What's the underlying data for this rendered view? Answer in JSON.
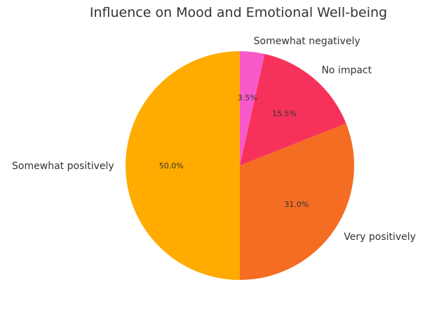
{
  "chart_data": {
    "type": "pie",
    "title": "Influence on Mood and Emotional Well-being",
    "slices": [
      {
        "label": "Somewhat negatively",
        "value": 3.5,
        "pct_label": "3.5%",
        "color": "#F75AC8"
      },
      {
        "label": "No impact",
        "value": 15.5,
        "pct_label": "15.5%",
        "color": "#F7325A"
      },
      {
        "label": "Very positively",
        "value": 31.0,
        "pct_label": "31.0%",
        "color": "#F46D23"
      },
      {
        "label": "Somewhat positively",
        "value": 50.0,
        "pct_label": "50.0%",
        "color": "#FFAB00"
      }
    ],
    "start_angle": "top",
    "direction": "clockwise",
    "legend": "none"
  }
}
